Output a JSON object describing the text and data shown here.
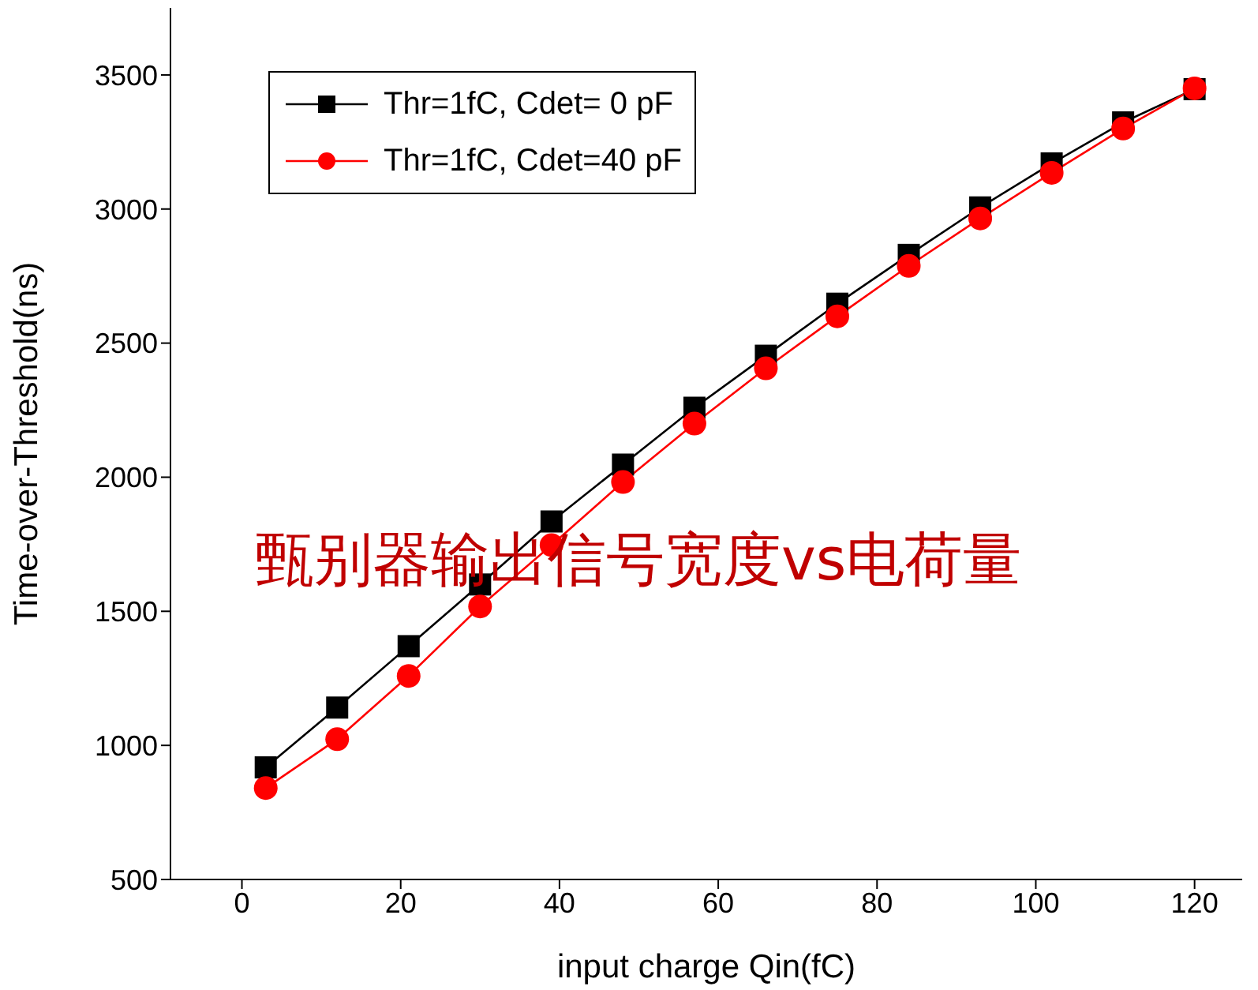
{
  "chart_data": {
    "type": "line",
    "xlabel": "input charge Qin(fC)",
    "ylabel": "Time-over-Threshold(ns)",
    "x": [
      3,
      12,
      21,
      30,
      39,
      48,
      57,
      66,
      75,
      84,
      93,
      102,
      111,
      120
    ],
    "series": [
      {
        "name": "Thr=1fC, Cdet= 0 pF",
        "color": "#000000",
        "marker": "square",
        "values": [
          918,
          1141,
          1370,
          1600,
          1835,
          2047,
          2259,
          2453,
          2647,
          2829,
          3006,
          3170,
          3323,
          3447
        ]
      },
      {
        "name": "Thr=1fC, Cdet=40 pF",
        "color": "#ff0000",
        "marker": "circle",
        "values": [
          841,
          1023,
          1259,
          1518,
          1747,
          1982,
          2200,
          2406,
          2600,
          2788,
          2965,
          3135,
          3300,
          3450
        ]
      }
    ],
    "xlim": [
      -9,
      126
    ],
    "xticks": [
      0,
      20,
      40,
      60,
      80,
      100,
      120
    ],
    "ylim": [
      500,
      3750
    ],
    "yticks": [
      500,
      1000,
      1500,
      2000,
      2500,
      3000,
      3500
    ],
    "grid": false,
    "legend": "top left",
    "line_style": "solid",
    "annotations": [
      "甄别器输出信号宽度vs电荷量"
    ]
  }
}
